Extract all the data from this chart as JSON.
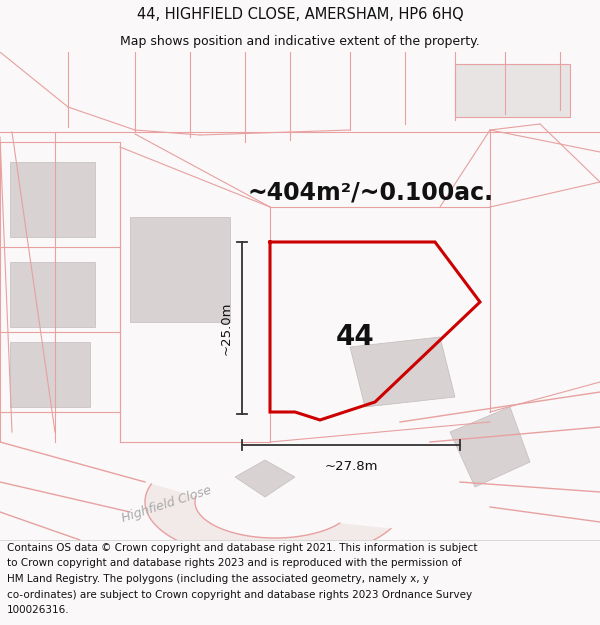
{
  "title": "44, HIGHFIELD CLOSE, AMERSHAM, HP6 6HQ",
  "subtitle": "Map shows position and indicative extent of the property.",
  "area_text": "~404m²/~0.100ac.",
  "label_44": "44",
  "dim_vertical": "~25.0m",
  "dim_horizontal": "~27.8m",
  "footer_lines": [
    "Contains OS data © Crown copyright and database right 2021. This information is subject",
    "to Crown copyright and database rights 2023 and is reproduced with the permission of",
    "HM Land Registry. The polygons (including the associated geometry, namely x, y",
    "co-ordinates) are subject to Crown copyright and database rights 2023 Ordnance Survey",
    "100026316."
  ],
  "bg_color": "#faf8f8",
  "map_bg": "#ffffff",
  "pink": "#e8a0a0",
  "red": "#cc0000",
  "building_face": "#d8d2d2",
  "building_edge": "#c4bcbc",
  "street_name": "Highfield Close",
  "title_fontsize": 10.5,
  "subtitle_fontsize": 9,
  "footer_fontsize": 7.5,
  "area_fontsize": 17,
  "label_fontsize": 20,
  "dim_fontsize": 9.5,
  "street_fontsize": 9
}
